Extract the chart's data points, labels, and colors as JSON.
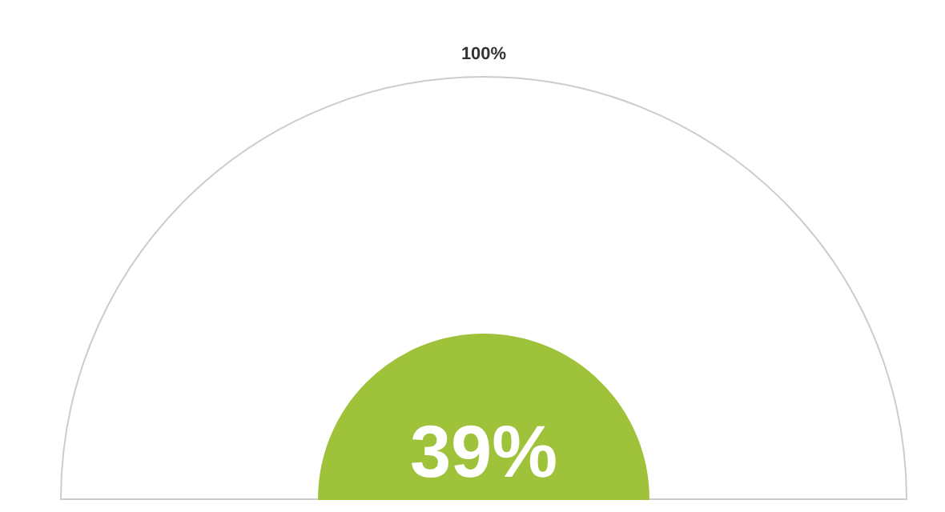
{
  "chart_data": {
    "type": "other",
    "values": [
      100,
      39
    ],
    "value_labels": [
      "100%",
      "39%"
    ],
    "colors": [
      "#ffffff",
      "#9fc23b"
    ]
  }
}
